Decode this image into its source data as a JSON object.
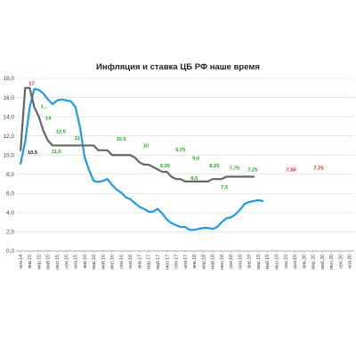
{
  "chart_data": {
    "type": "line",
    "title": "Инфляция и ставка ЦБ РФ наше время",
    "ylim": [
      0,
      18
    ],
    "yticks": [
      "0,0",
      "2,0",
      "4,0",
      "6,0",
      "8,0",
      "10,0",
      "12,0",
      "14,0",
      "16,0",
      "18,0"
    ],
    "grid": "horizontal",
    "legend": "none",
    "x_labels": [
      "ноя.14",
      "янв.15",
      "мар.15",
      "май.15",
      "июл.15",
      "сен.15",
      "ноя.15",
      "янв.16",
      "мар.16",
      "май.16",
      "июл.16",
      "сен.16",
      "ноя.16",
      "янв.17",
      "мар.17",
      "май.17",
      "июл.17",
      "сен.17",
      "ноя.17",
      "янв.18",
      "мар.18",
      "май.18",
      "июл.18",
      "сен.18",
      "ноя.18",
      "янв.19",
      "мар.19",
      "май.19",
      "июл.19",
      "сен.19",
      "ноя.19",
      "янв.20",
      "мар.20",
      "май.20",
      "июл.20",
      "сен.20",
      "ноя.20"
    ],
    "series": [
      {
        "color": "#1f9be6",
        "x": [
          0,
          0.5,
          1,
          1.5,
          2,
          2.5,
          3,
          3.5,
          4,
          4.5,
          5,
          5.5,
          6,
          6.5,
          7,
          7.5,
          8,
          8.5,
          9,
          9.5,
          10,
          10.5,
          11,
          11.5,
          12,
          12.5,
          13,
          13.5,
          14,
          14.5,
          15,
          15.5,
          16,
          16.5,
          17,
          17.5,
          18,
          18.5,
          19,
          19.5,
          20,
          20.5,
          21,
          21.5,
          22,
          22.5,
          23,
          23.5,
          24,
          24.5,
          25,
          25.5,
          26,
          26.5,
          27,
          27.5,
          28,
          28.5,
          29
        ],
        "y": [
          9.1,
          11.4,
          15.0,
          16.9,
          16.8,
          16.4,
          15.8,
          15.3,
          15.7,
          15.8,
          15.7,
          15.6,
          15.0,
          12.9,
          9.8,
          8.4,
          7.3,
          7.2,
          7.3,
          7.5,
          6.9,
          6.4,
          6.1,
          5.6,
          5.4,
          5.0,
          4.6,
          4.4,
          4.1,
          4.1,
          4.4,
          3.9,
          3.3,
          2.9,
          2.7,
          2.5,
          2.5,
          2.2,
          2.2,
          2.3,
          2.4,
          2.4,
          2.3,
          2.5,
          3.0,
          3.4,
          3.5,
          3.8,
          4.3,
          4.9,
          5.1,
          5.2,
          5.3,
          5.2,
          null,
          null,
          null,
          null,
          null
        ]
      },
      {
        "color": "#666666",
        "x": [
          0,
          0.5,
          1,
          1.5,
          2,
          2.5,
          3,
          3.5,
          4,
          4.5,
          5,
          5.5,
          6,
          6.5,
          7,
          7.5,
          8,
          8.5,
          9,
          9.5,
          10,
          10.5,
          11,
          11.5,
          12,
          12.5,
          13,
          13.5,
          14,
          14.5,
          15,
          15.5,
          16,
          16.5,
          17,
          17.5,
          18,
          18.5,
          19,
          19.5,
          20,
          20.5,
          21,
          21.5,
          22,
          22.5,
          23,
          23.5,
          24,
          24.5,
          25,
          25.5,
          26,
          26.5,
          27,
          27.5,
          28,
          28.5,
          29
        ],
        "y": [
          10.5,
          17,
          17,
          15,
          14,
          12.5,
          11.5,
          11,
          11,
          11,
          11,
          11,
          11,
          11,
          11,
          11,
          11,
          10.5,
          10.5,
          10.5,
          10,
          10,
          10,
          10,
          10,
          9.75,
          9.25,
          9,
          9,
          8.75,
          8.5,
          8.25,
          8.25,
          7.75,
          7.5,
          7.5,
          7.25,
          7.25,
          7.25,
          7.25,
          7.25,
          7.25,
          7.5,
          7.5,
          7.5,
          7.75,
          7.75,
          7.75,
          7.75,
          7.75,
          7.75,
          7.75,
          null,
          null,
          null,
          null,
          null,
          null,
          null
        ]
      }
    ],
    "annotations": [
      {
        "text": "10,5",
        "x": 1.3,
        "y": 10.1,
        "color": "#222222"
      },
      {
        "text": "17",
        "x": 1.2,
        "y": 17.3,
        "color": "#e02020"
      },
      {
        "text": "1...",
        "x": 2.6,
        "y": 14.9,
        "color": "#22aa22"
      },
      {
        "text": "14",
        "x": 3.0,
        "y": 13.7,
        "color": "#22aa22"
      },
      {
        "text": "12,5",
        "x": 4.4,
        "y": 12.3,
        "color": "#22aa22"
      },
      {
        "text": "11,5",
        "x": 3.9,
        "y": 10.2,
        "color": "#22aa22"
      },
      {
        "text": "11",
        "x": 6.2,
        "y": 11.6,
        "color": "#22aa22"
      },
      {
        "text": "10,5",
        "x": 11.0,
        "y": 11.5,
        "color": "#22aa22"
      },
      {
        "text": "10",
        "x": 13.7,
        "y": 10.8,
        "color": "#22aa22"
      },
      {
        "text": "9,75",
        "x": 17.5,
        "y": 10.4,
        "color": "#22aa22"
      },
      {
        "text": "9,25",
        "x": 15.8,
        "y": 8.7,
        "color": "#22aa22"
      },
      {
        "text": "9,0",
        "x": 19.2,
        "y": 9.5,
        "color": "#22aa22"
      },
      {
        "text": "8,5",
        "x": 19.0,
        "y": 7.4,
        "color": "#22aa22"
      },
      {
        "text": "8,25",
        "x": 21.2,
        "y": 8.7,
        "color": "#22aa22"
      },
      {
        "text": "7,75",
        "x": 23.4,
        "y": 8.5,
        "color": "#22aa22"
      },
      {
        "text": "7,25",
        "x": 25.4,
        "y": 8.3,
        "color": "#22aa22"
      },
      {
        "text": "7,5",
        "x": 22.3,
        "y": 6.5,
        "color": "#22aa22"
      },
      {
        "text": "7,50",
        "x": 29.6,
        "y": 8.3,
        "color": "#e02020"
      },
      {
        "text": "7,75",
        "x": 32.6,
        "y": 8.5,
        "color": "#e02020"
      }
    ]
  }
}
